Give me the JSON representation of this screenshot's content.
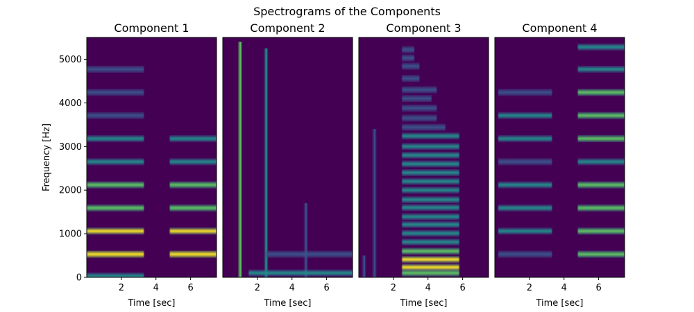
{
  "figure": {
    "suptitle": "Spectrograms of the Components",
    "colors": {
      "background": "#440154",
      "low": "#3b528b",
      "mid": "#21918c",
      "high": "#5ec962",
      "peak": "#fde725"
    }
  },
  "chart_data": [
    {
      "type": "heatmap",
      "title": "Component 1",
      "xlabel": "Time [sec]",
      "ylabel": "Frequency [Hz]",
      "xlim": [
        0,
        7.5
      ],
      "ylim": [
        0,
        5500
      ],
      "xticks": [
        2,
        4,
        6
      ],
      "yticks": [
        0,
        1000,
        2000,
        3000,
        4000,
        5000
      ],
      "bands": [
        {
          "freq": 530,
          "intensity": 1.0,
          "segments": [
            [
              0,
              3.3
            ],
            [
              4.8,
              7.5
            ]
          ]
        },
        {
          "freq": 1060,
          "intensity": 0.85,
          "segments": [
            [
              0,
              3.3
            ],
            [
              4.8,
              7.5
            ]
          ]
        },
        {
          "freq": 1590,
          "intensity": 0.75,
          "segments": [
            [
              0,
              3.3
            ],
            [
              4.8,
              7.5
            ]
          ]
        },
        {
          "freq": 2120,
          "intensity": 0.65,
          "segments": [
            [
              0,
              3.3
            ],
            [
              4.8,
              7.5
            ]
          ]
        },
        {
          "freq": 2650,
          "intensity": 0.55,
          "segments": [
            [
              0,
              3.3
            ],
            [
              4.8,
              7.5
            ]
          ]
        },
        {
          "freq": 3180,
          "intensity": 0.4,
          "segments": [
            [
              0,
              3.3
            ],
            [
              4.8,
              7.5
            ]
          ]
        },
        {
          "freq": 3710,
          "intensity": 0.2,
          "segments": [
            [
              0,
              3.3
            ]
          ]
        },
        {
          "freq": 4240,
          "intensity": 0.25,
          "segments": [
            [
              0,
              3.3
            ]
          ]
        },
        {
          "freq": 4770,
          "intensity": 0.12,
          "segments": [
            [
              0,
              3.3
            ]
          ]
        },
        {
          "freq": 30,
          "intensity": 0.5,
          "segments": [
            [
              0,
              3.3
            ]
          ]
        }
      ]
    },
    {
      "type": "heatmap",
      "title": "Component 2",
      "xlabel": "Time [sec]",
      "ylabel": "",
      "xlim": [
        0,
        7.5
      ],
      "ylim": [
        0,
        5500
      ],
      "xticks": [
        2,
        4,
        6
      ],
      "yticks": [],
      "bands": [
        {
          "freq": 100,
          "intensity": 0.4,
          "segments": [
            [
              1.5,
              7.5
            ]
          ]
        },
        {
          "freq": 530,
          "intensity": 0.2,
          "segments": [
            [
              2.5,
              7.5
            ]
          ]
        }
      ],
      "transients": [
        {
          "time": 1.0,
          "fmin": 0,
          "fmax": 5400,
          "intensity": 0.75
        },
        {
          "time": 2.5,
          "fmin": 0,
          "fmax": 5250,
          "intensity": 0.4
        },
        {
          "time": 4.8,
          "fmin": 0,
          "fmax": 1700,
          "intensity": 0.25
        }
      ]
    },
    {
      "type": "heatmap",
      "title": "Component 3",
      "xlabel": "Time [sec]",
      "ylabel": "",
      "xlim": [
        0,
        7.5
      ],
      "ylim": [
        0,
        5500
      ],
      "xticks": [
        2,
        4,
        6
      ],
      "yticks": [],
      "bands": [
        {
          "freq": 100,
          "intensity": 0.65,
          "segments": [
            [
              2.5,
              5.8
            ]
          ]
        },
        {
          "freq": 230,
          "intensity": 0.9,
          "segments": [
            [
              2.5,
              5.8
            ]
          ]
        },
        {
          "freq": 410,
          "intensity": 0.85,
          "segments": [
            [
              2.5,
              5.8
            ]
          ]
        },
        {
          "freq": 600,
          "intensity": 0.6,
          "segments": [
            [
              2.5,
              5.8
            ]
          ]
        },
        {
          "freq": 810,
          "intensity": 0.55,
          "segments": [
            [
              2.5,
              5.8
            ]
          ]
        },
        {
          "freq": 1010,
          "intensity": 0.55,
          "segments": [
            [
              2.5,
              5.8
            ]
          ]
        },
        {
          "freq": 1210,
          "intensity": 0.55,
          "segments": [
            [
              2.5,
              5.8
            ]
          ]
        },
        {
          "freq": 1390,
          "intensity": 0.55,
          "segments": [
            [
              2.5,
              5.8
            ]
          ]
        },
        {
          "freq": 1600,
          "intensity": 0.55,
          "segments": [
            [
              2.5,
              5.8
            ]
          ]
        },
        {
          "freq": 1780,
          "intensity": 0.5,
          "segments": [
            [
              2.5,
              5.8
            ]
          ]
        },
        {
          "freq": 2000,
          "intensity": 0.55,
          "segments": [
            [
              2.5,
              5.8
            ]
          ]
        },
        {
          "freq": 2200,
          "intensity": 0.45,
          "segments": [
            [
              2.5,
              5.8
            ]
          ]
        },
        {
          "freq": 2400,
          "intensity": 0.45,
          "segments": [
            [
              2.5,
              5.8
            ]
          ]
        },
        {
          "freq": 2600,
          "intensity": 0.4,
          "segments": [
            [
              2.5,
              5.8
            ]
          ]
        },
        {
          "freq": 2800,
          "intensity": 0.35,
          "segments": [
            [
              2.5,
              5.8
            ]
          ]
        },
        {
          "freq": 3000,
          "intensity": 0.35,
          "segments": [
            [
              2.5,
              5.8
            ]
          ]
        },
        {
          "freq": 3240,
          "intensity": 0.4,
          "segments": [
            [
              2.5,
              5.8
            ]
          ]
        },
        {
          "freq": 3440,
          "intensity": 0.25,
          "segments": [
            [
              2.5,
              5.0
            ]
          ]
        },
        {
          "freq": 3650,
          "intensity": 0.2,
          "segments": [
            [
              2.5,
              4.5
            ]
          ]
        },
        {
          "freq": 3880,
          "intensity": 0.2,
          "segments": [
            [
              2.5,
              4.5
            ]
          ]
        },
        {
          "freq": 4100,
          "intensity": 0.2,
          "segments": [
            [
              2.5,
              4.2
            ]
          ]
        },
        {
          "freq": 4300,
          "intensity": 0.25,
          "segments": [
            [
              2.5,
              4.5
            ]
          ]
        },
        {
          "freq": 4560,
          "intensity": 0.15,
          "segments": [
            [
              2.5,
              3.5
            ]
          ]
        },
        {
          "freq": 4840,
          "intensity": 0.2,
          "segments": [
            [
              2.5,
              3.5
            ]
          ]
        },
        {
          "freq": 5030,
          "intensity": 0.15,
          "segments": [
            [
              2.5,
              3.2
            ]
          ]
        },
        {
          "freq": 5220,
          "intensity": 0.15,
          "segments": [
            [
              2.5,
              3.2
            ]
          ]
        }
      ],
      "transients": [
        {
          "time": 0.9,
          "fmin": 0,
          "fmax": 3400,
          "intensity": 0.3
        },
        {
          "time": 0.3,
          "fmin": 0,
          "fmax": 500,
          "intensity": 0.25
        }
      ]
    },
    {
      "type": "heatmap",
      "title": "Component 4",
      "xlabel": "Time [sec]",
      "ylabel": "",
      "xlim": [
        0,
        7.5
      ],
      "ylim": [
        0,
        5500
      ],
      "xticks": [
        2,
        4,
        6
      ],
      "yticks": [],
      "bands": [
        {
          "freq": 530,
          "intensity": 0.2,
          "segments": [
            [
              0.2,
              3.3
            ]
          ]
        },
        {
          "freq": 1060,
          "intensity": 0.35,
          "segments": [
            [
              0.2,
              3.3
            ]
          ]
        },
        {
          "freq": 1590,
          "intensity": 0.4,
          "segments": [
            [
              0.2,
              3.3
            ]
          ]
        },
        {
          "freq": 2120,
          "intensity": 0.4,
          "segments": [
            [
              0.2,
              3.3
            ]
          ]
        },
        {
          "freq": 2650,
          "intensity": 0.25,
          "segments": [
            [
              0.2,
              3.3
            ]
          ]
        },
        {
          "freq": 3180,
          "intensity": 0.45,
          "segments": [
            [
              0.2,
              3.3
            ]
          ]
        },
        {
          "freq": 3710,
          "intensity": 0.45,
          "segments": [
            [
              0.2,
              3.3
            ]
          ]
        },
        {
          "freq": 4240,
          "intensity": 0.3,
          "segments": [
            [
              0.2,
              3.3
            ]
          ]
        },
        {
          "freq": 530,
          "intensity": 0.6,
          "segments": [
            [
              4.8,
              7.5
            ]
          ]
        },
        {
          "freq": 1060,
          "intensity": 0.75,
          "segments": [
            [
              4.8,
              7.5
            ]
          ]
        },
        {
          "freq": 1590,
          "intensity": 0.8,
          "segments": [
            [
              4.8,
              7.5
            ]
          ]
        },
        {
          "freq": 2120,
          "intensity": 0.75,
          "segments": [
            [
              4.8,
              7.5
            ]
          ]
        },
        {
          "freq": 2650,
          "intensity": 0.55,
          "segments": [
            [
              4.8,
              7.5
            ]
          ]
        },
        {
          "freq": 3180,
          "intensity": 0.75,
          "segments": [
            [
              4.8,
              7.5
            ]
          ]
        },
        {
          "freq": 3710,
          "intensity": 0.7,
          "segments": [
            [
              4.8,
              7.5
            ]
          ]
        },
        {
          "freq": 4240,
          "intensity": 0.6,
          "segments": [
            [
              4.8,
              7.5
            ]
          ]
        },
        {
          "freq": 4770,
          "intensity": 0.45,
          "segments": [
            [
              4.8,
              7.5
            ]
          ]
        },
        {
          "freq": 5280,
          "intensity": 0.35,
          "segments": [
            [
              4.8,
              7.5
            ]
          ]
        }
      ]
    }
  ]
}
